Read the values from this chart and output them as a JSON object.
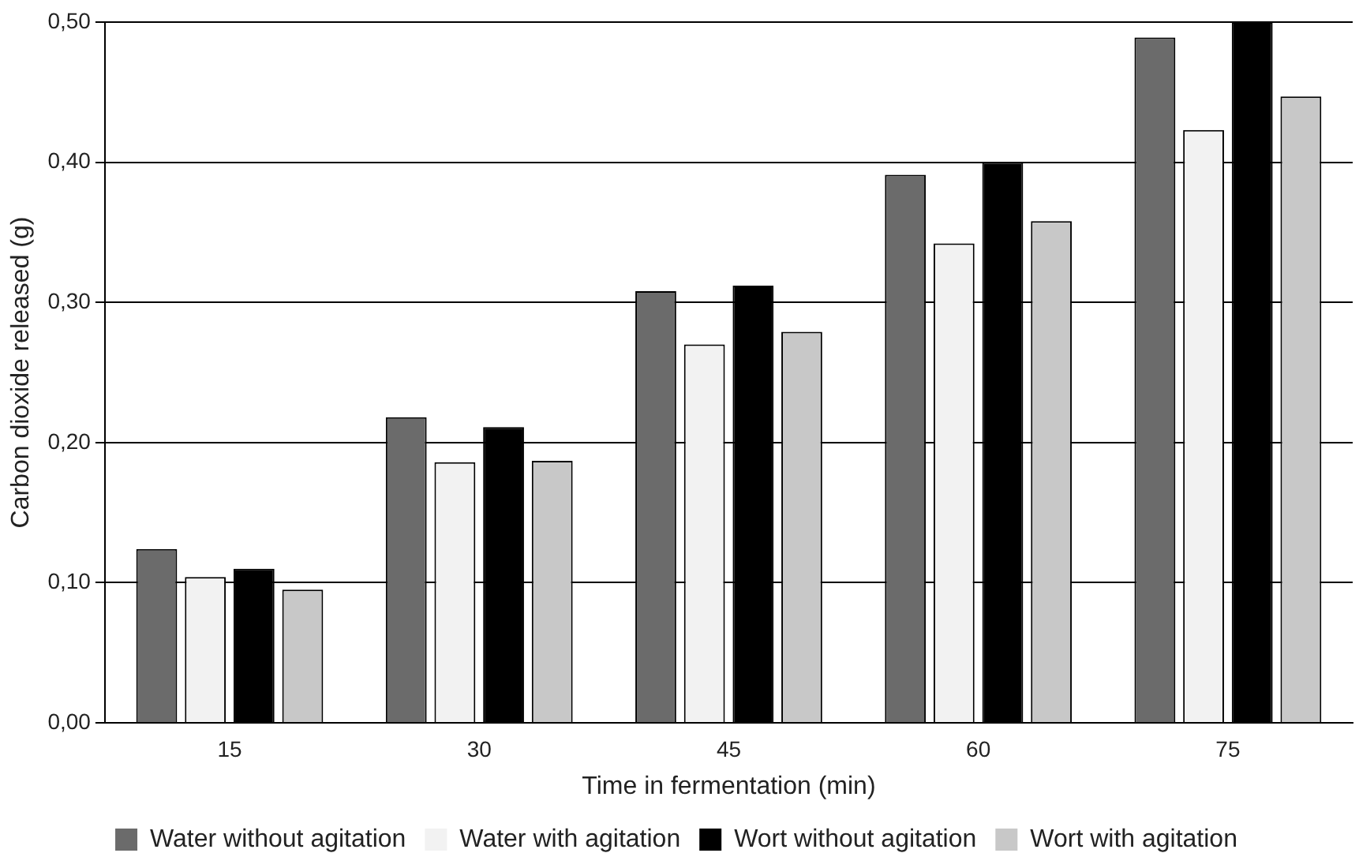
{
  "chart_data": {
    "type": "bar",
    "xlabel": "Time in fermentation (min)",
    "ylabel": "Carbon dioxide released (g)",
    "categories": [
      "15",
      "30",
      "45",
      "60",
      "75"
    ],
    "series": [
      {
        "name": "Water without agitation",
        "color": "#6b6b6b",
        "values": [
          0.124,
          0.218,
          0.308,
          0.391,
          0.489
        ]
      },
      {
        "name": "Water with agitation",
        "color": "#f2f2f2",
        "values": [
          0.104,
          0.186,
          0.27,
          0.342,
          0.423
        ]
      },
      {
        "name": "Wort without agitation",
        "color": "#000000",
        "values": [
          0.11,
          0.211,
          0.312,
          0.4,
          0.5
        ]
      },
      {
        "name": "Wort with agitation",
        "color": "#c8c8c8",
        "values": [
          0.095,
          0.187,
          0.279,
          0.358,
          0.447
        ]
      }
    ],
    "ylim": [
      0,
      0.5
    ],
    "yticks": [
      {
        "value": 0,
        "label": "0,00"
      },
      {
        "value": 0.1,
        "label": "0,10"
      },
      {
        "value": 0.2,
        "label": "0,20"
      },
      {
        "value": 0.3,
        "label": "0,30"
      },
      {
        "value": 0.4,
        "label": "0,40"
      },
      {
        "value": 0.5,
        "label": "0,50"
      }
    ],
    "grid": "y",
    "legend": "bottom"
  }
}
